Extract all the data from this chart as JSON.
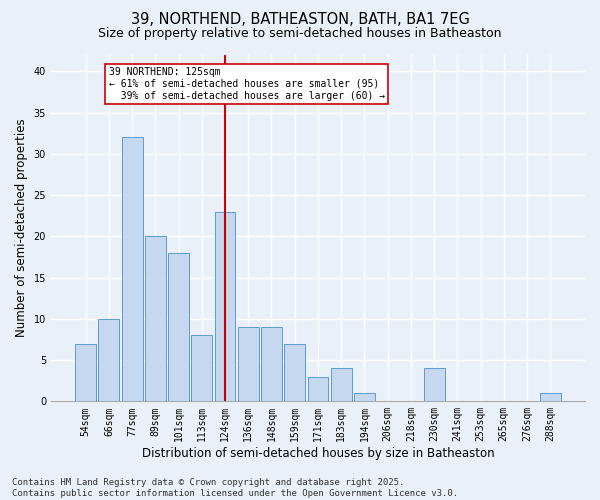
{
  "title": "39, NORTHEND, BATHEASTON, BATH, BA1 7EG",
  "subtitle": "Size of property relative to semi-detached houses in Batheaston",
  "xlabel": "Distribution of semi-detached houses by size in Batheaston",
  "ylabel": "Number of semi-detached properties",
  "categories": [
    "54sqm",
    "66sqm",
    "77sqm",
    "89sqm",
    "101sqm",
    "113sqm",
    "124sqm",
    "136sqm",
    "148sqm",
    "159sqm",
    "171sqm",
    "183sqm",
    "194sqm",
    "206sqm",
    "218sqm",
    "230sqm",
    "241sqm",
    "253sqm",
    "265sqm",
    "276sqm",
    "288sqm"
  ],
  "values": [
    7,
    10,
    32,
    20,
    18,
    8,
    23,
    9,
    9,
    7,
    3,
    4,
    1,
    0,
    0,
    4,
    0,
    0,
    0,
    0,
    1
  ],
  "bar_color": "#c5d8f0",
  "bar_edge_color": "#5b9bd5",
  "highlight_index": 6,
  "highlight_line_color": "#cc0000",
  "annotation_text": "39 NORTHEND: 125sqm\n← 61% of semi-detached houses are smaller (95)\n  39% of semi-detached houses are larger (60) →",
  "annotation_box_color": "#ffffff",
  "annotation_box_edge_color": "#cc0000",
  "footer_text": "Contains HM Land Registry data © Crown copyright and database right 2025.\nContains public sector information licensed under the Open Government Licence v3.0.",
  "ylim": [
    0,
    42
  ],
  "yticks": [
    0,
    5,
    10,
    15,
    20,
    25,
    30,
    35,
    40
  ],
  "bg_color": "#eaf0f8",
  "grid_color": "#ffffff",
  "title_fontsize": 10.5,
  "subtitle_fontsize": 9,
  "tick_fontsize": 7,
  "label_fontsize": 8.5,
  "footer_fontsize": 6.5
}
